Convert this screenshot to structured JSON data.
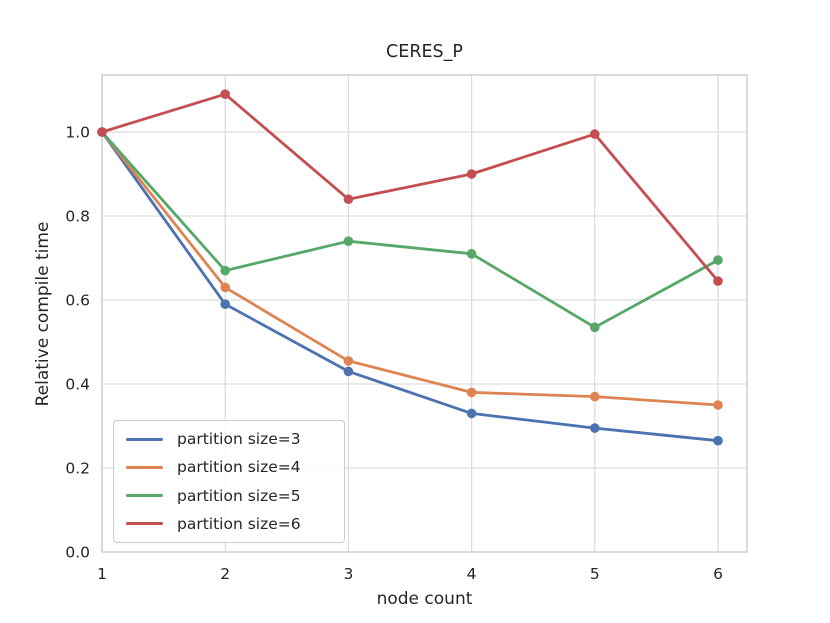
{
  "chart_data": {
    "type": "line",
    "title": "CERES_P",
    "xlabel": "node count",
    "ylabel": "Relative compile time",
    "x": [
      1,
      2,
      3,
      4,
      5,
      6
    ],
    "xticks": [
      "1",
      "2",
      "3",
      "4",
      "5",
      "6"
    ],
    "yticks": [
      "0.0",
      "0.2",
      "0.4",
      "0.6",
      "0.8",
      "1.0"
    ],
    "ytick_values": [
      0.0,
      0.2,
      0.4,
      0.6,
      0.8,
      1.0
    ],
    "xlim": [
      1,
      6.24
    ],
    "ylim": [
      0,
      1.136
    ],
    "grid": true,
    "legend_position": "lower-left",
    "colors": {
      "grid": "#dddddd",
      "spine": "#cccccc",
      "text": "#262626",
      "background": "#ffffff"
    },
    "series": [
      {
        "name": "partition size=3",
        "color": "#4C72B0",
        "values": [
          1.0,
          0.59,
          0.43,
          0.33,
          0.295,
          0.265
        ]
      },
      {
        "name": "partition size=4",
        "color": "#DD8452",
        "values": [
          1.0,
          0.63,
          0.455,
          0.38,
          0.37,
          0.35
        ]
      },
      {
        "name": "partition size=5",
        "color": "#55A868",
        "values": [
          1.0,
          0.67,
          0.74,
          0.71,
          0.535,
          0.695
        ]
      },
      {
        "name": "partition size=6",
        "color": "#C44E52",
        "values": [
          1.0,
          1.09,
          0.84,
          0.9,
          0.995,
          0.645
        ]
      }
    ]
  }
}
